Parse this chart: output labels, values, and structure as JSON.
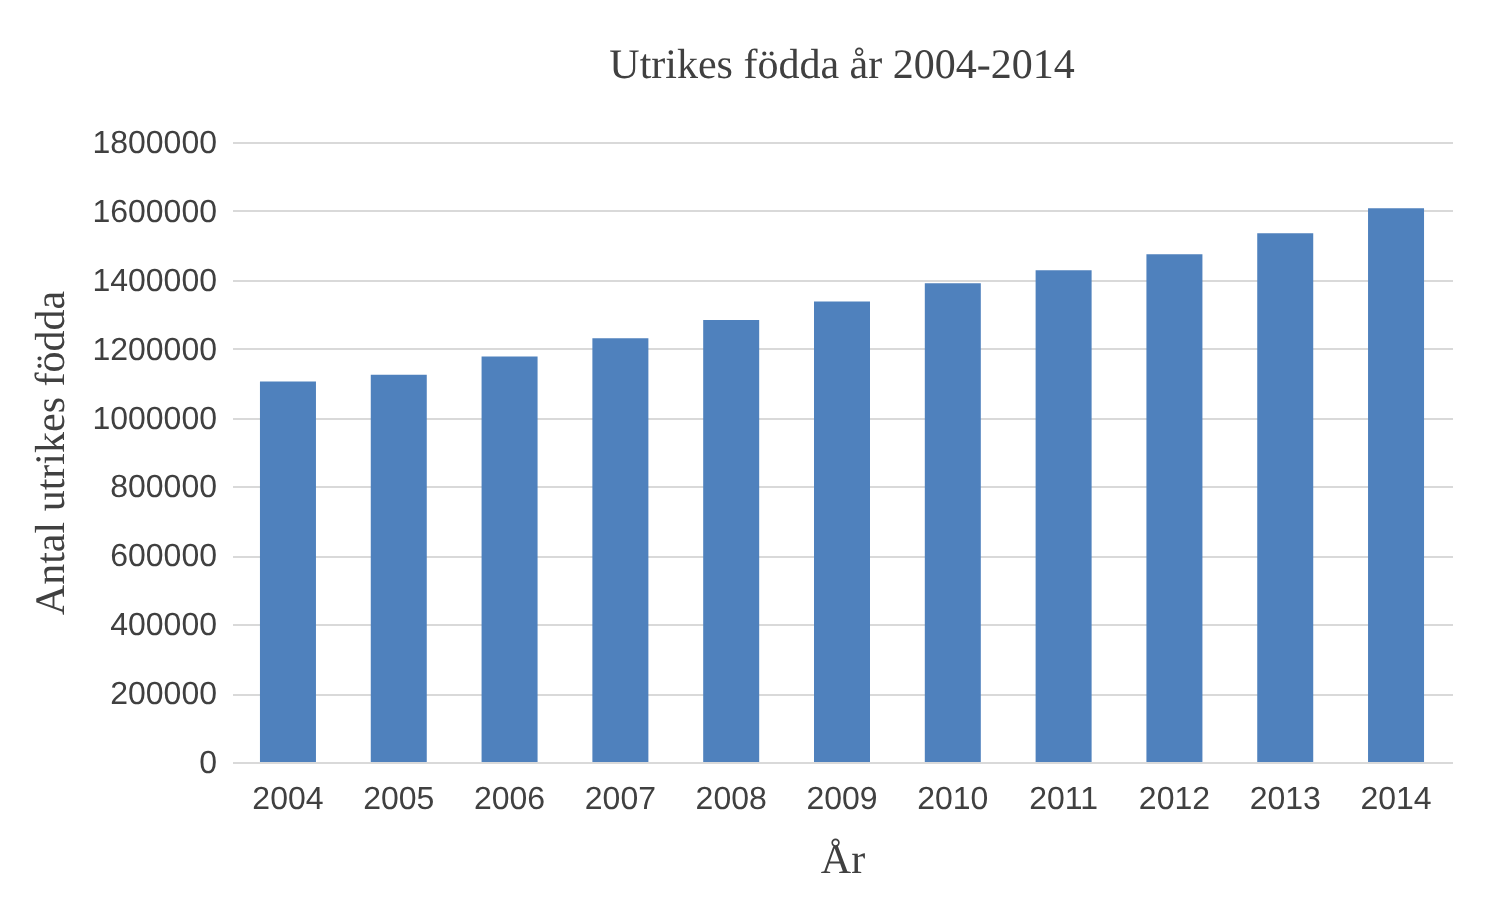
{
  "chart_data": {
    "type": "bar",
    "title": "Utrikes födda år 2004-2014",
    "xlabel": "År",
    "ylabel": "Antal utrikes födda",
    "categories": [
      "2004",
      "2005",
      "2006",
      "2007",
      "2008",
      "2009",
      "2010",
      "2011",
      "2012",
      "2013",
      "2014"
    ],
    "values": [
      1105000,
      1124000,
      1177000,
      1230000,
      1283000,
      1337000,
      1390000,
      1428000,
      1474000,
      1535000,
      1608000
    ],
    "color": "#4f81bd",
    "ylim": [
      0,
      1800000
    ],
    "yticks": [
      0,
      200000,
      400000,
      600000,
      800000,
      1000000,
      1200000,
      1400000,
      1600000,
      1800000
    ],
    "grid": "y"
  }
}
